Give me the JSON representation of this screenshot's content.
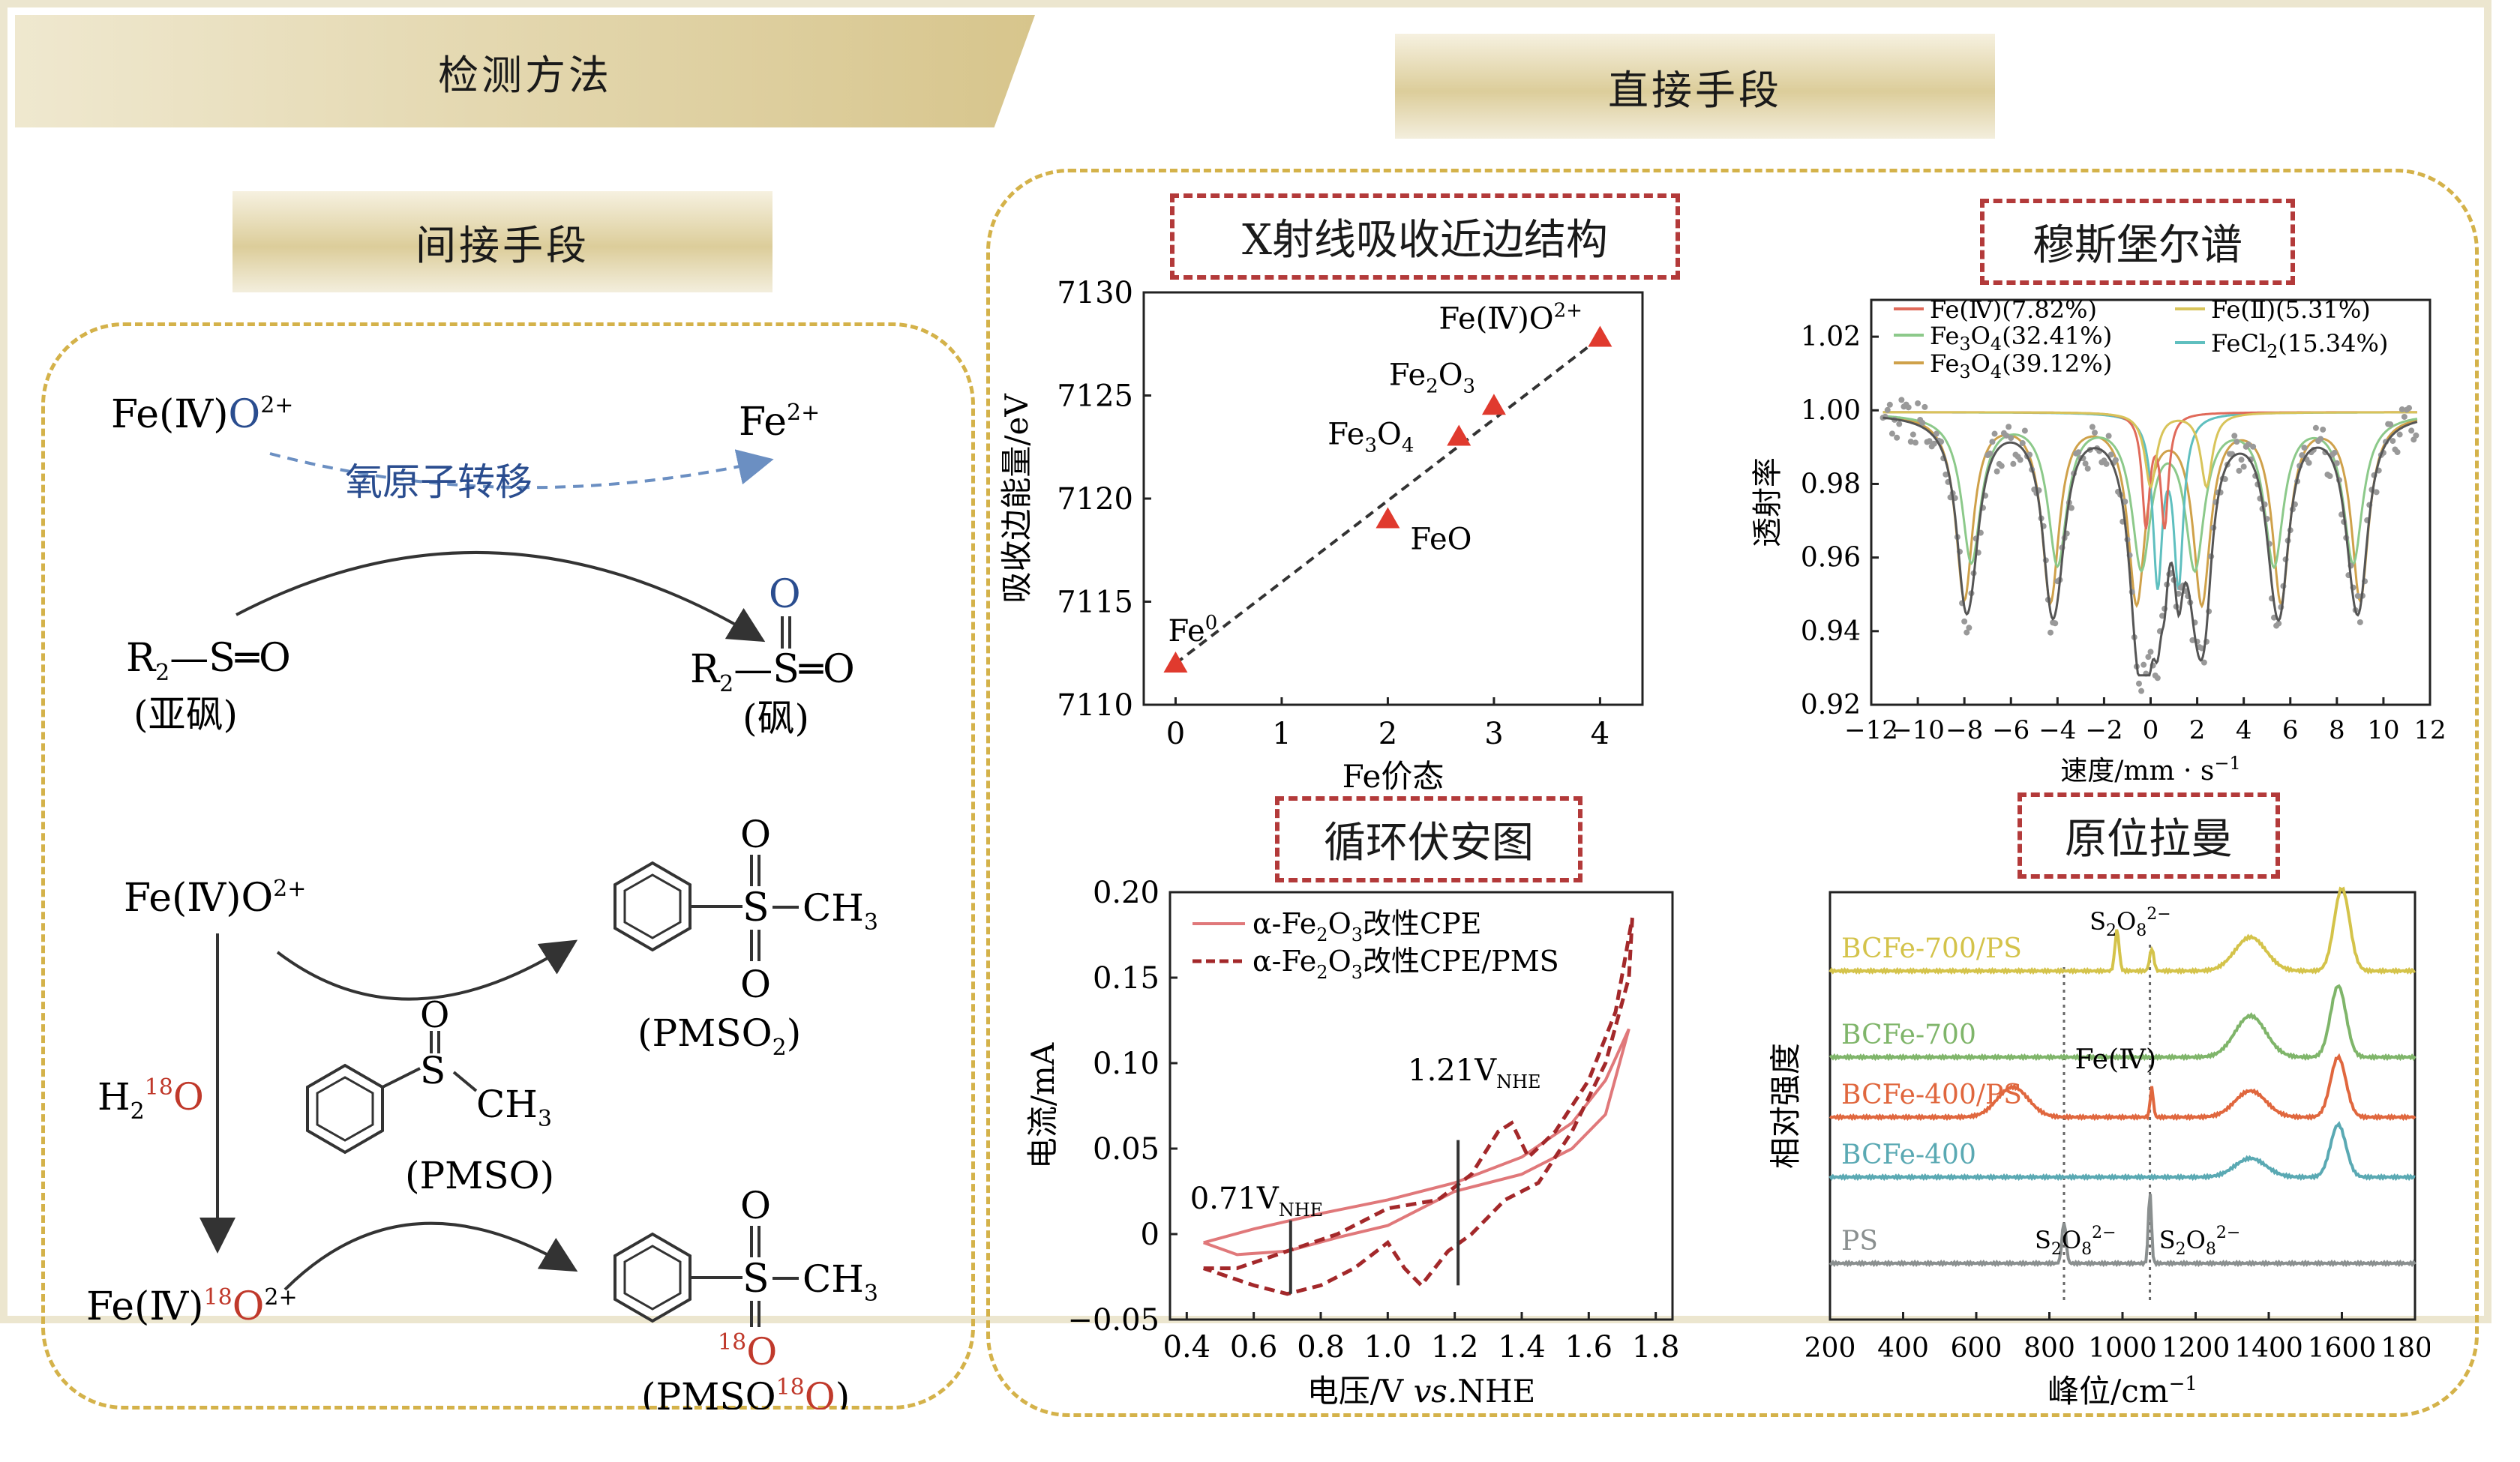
{
  "header": {
    "methods": "检测方法",
    "direct": "直接手段",
    "indirect": "间接手段"
  },
  "direct_titles": {
    "xanes": "X射线吸收近边结构",
    "mossbauer": "穆斯堡尔谱",
    "cv": "循环伏安图",
    "raman": "原位拉曼"
  },
  "indirect": {
    "oat_label": "氧原子转移",
    "sulfoxide_name": "(亚砜)",
    "sulfone_name": "(砜)",
    "pmso2": "(PMSO",
    "pmso": "(PMSO)",
    "pmso18": "(PMSO",
    "ch3": "CH",
    "o": "O",
    "s": "S"
  },
  "colors": {
    "accent_red": "#c0392b",
    "blue_o": "#2a4d8f",
    "gold": "#d4b24a",
    "arrow_blue": "#6b8fc2"
  },
  "chart_data": [
    {
      "type": "scatter",
      "title": "X射线吸收近边结构",
      "xlabel": "Fe价态",
      "ylabel": "吸收边能量/eV",
      "xlim": [
        -0.3,
        4.4
      ],
      "ylim": [
        7110,
        7130
      ],
      "xticks": [
        "0",
        "1",
        "2",
        "3",
        "4"
      ],
      "yticks": [
        "7110",
        "7115",
        "7120",
        "7125",
        "7130"
      ],
      "points": [
        {
          "label": "Fe",
          "x": 0,
          "y": 7112
        },
        {
          "label": "FeO",
          "x": 2,
          "y": 7119
        },
        {
          "label": "Fe3O4",
          "x": 2.67,
          "y": 7123
        },
        {
          "label": "Fe2O3",
          "x": 3,
          "y": 7124.5
        },
        {
          "label": "Fe(Ⅳ)O",
          "x": 4,
          "y": 7127.8
        }
      ],
      "fit_line": [
        [
          0,
          7112
        ],
        [
          4,
          7127.8
        ]
      ]
    },
    {
      "type": "line",
      "title": "穆斯堡尔谱",
      "xlabel": "速度/mm · s",
      "ylabel": "透射率",
      "xlim": [
        -12,
        12
      ],
      "ylim": [
        0.92,
        1.03
      ],
      "xticks": [
        "−12",
        "−10",
        "−8",
        "−6",
        "−4",
        "−2",
        "0",
        "2",
        "4",
        "6",
        "8",
        "10",
        "12"
      ],
      "yticks": [
        "0.92",
        "0.94",
        "0.96",
        "0.98",
        "1.00",
        "1.02"
      ],
      "legend": [
        {
          "name": "Fe(Ⅳ)(7.82%)",
          "color": "#e06a5a"
        },
        {
          "name": "Fe(Ⅱ)(5.31%)",
          "color": "#d8c45a"
        },
        {
          "name": "Fe3O4(32.41%)",
          "color": "#8cc98a"
        },
        {
          "name": "FeCl2(15.34%)",
          "color": "#5fbfbf"
        },
        {
          "name": "Fe3O4(39.12%)",
          "color": "#cfa14a"
        }
      ],
      "dips": [
        -8,
        -4.3,
        -0.8,
        1.9,
        5.4,
        8.8
      ]
    },
    {
      "type": "line",
      "title": "循环伏安图",
      "xlabel": "电压/V",
      "xlabel_vs": "vs.NHE",
      "ylabel": "电流/mA",
      "xlim": [
        0.35,
        1.85
      ],
      "ylim": [
        -0.05,
        0.2
      ],
      "xticks": [
        "0.4",
        "0.6",
        "0.8",
        "1.0",
        "1.2",
        "1.4",
        "1.6",
        "1.8"
      ],
      "yticks": [
        "−0.05",
        "0",
        "0.05",
        "0.10",
        "0.15",
        "0.20"
      ],
      "series": [
        {
          "name": "α-Fe2O3改性CPE",
          "style": "solid"
        },
        {
          "name": "α-Fe2O3改性CPE/PMS",
          "style": "dashed"
        }
      ],
      "annotations": [
        {
          "text": "0.71V",
          "x": 0.71
        },
        {
          "text": "1.21V",
          "x": 1.21
        }
      ]
    },
    {
      "type": "line",
      "title": "原位拉曼",
      "xlabel": "峰位/cm",
      "ylabel": "相对强度",
      "xlim": [
        200,
        1800
      ],
      "xticks": [
        "200",
        "400",
        "600",
        "800",
        "1000",
        "1200",
        "1400",
        "1600",
        "1800"
      ],
      "series": [
        {
          "name": "BCFe-700/PS",
          "color": "#d4c34a"
        },
        {
          "name": "BCFe-700",
          "color": "#7fb56a"
        },
        {
          "name": "BCFe-400/PS",
          "color": "#e0673e"
        },
        {
          "name": "BCFe-400",
          "color": "#5aa9b3"
        },
        {
          "name": "PS",
          "color": "#8a8f8f"
        }
      ],
      "annotations": [
        "S2O8",
        "Fe(Ⅳ)"
      ]
    }
  ]
}
